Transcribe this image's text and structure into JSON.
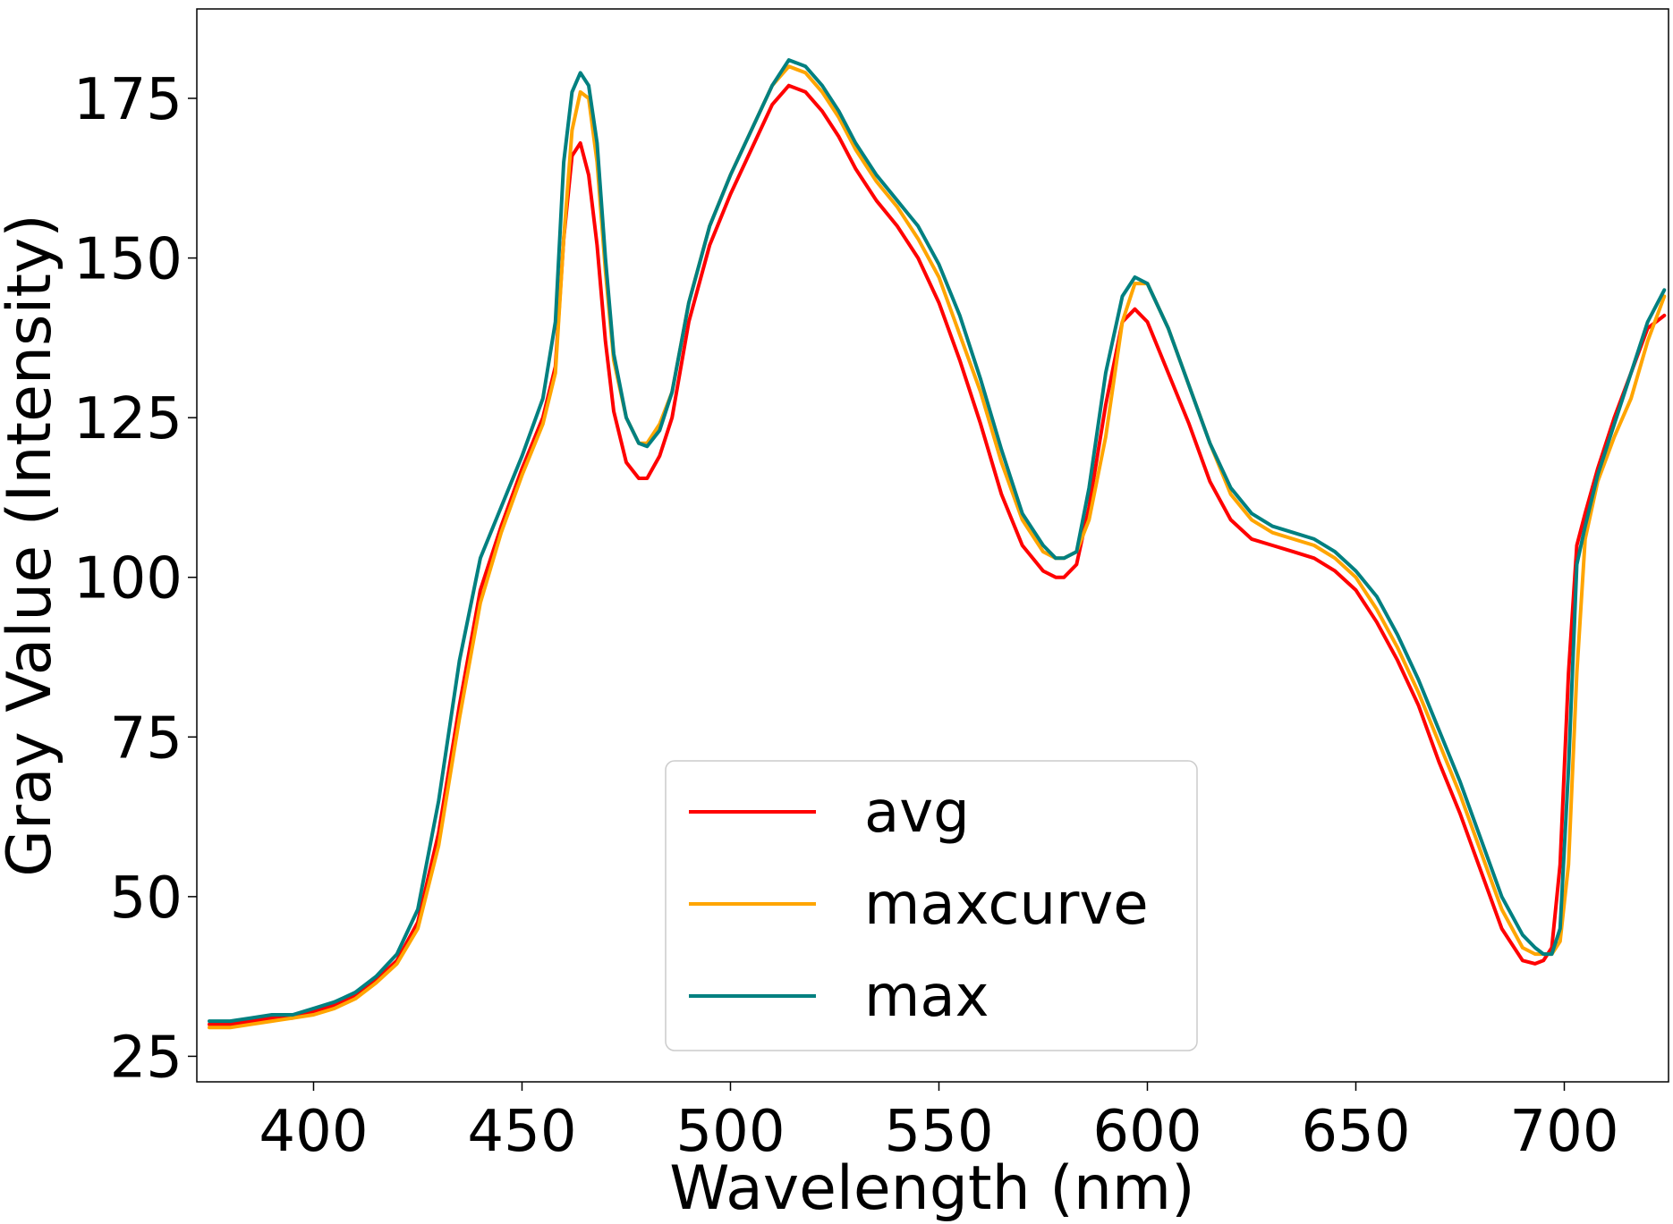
{
  "chart_data": {
    "type": "line",
    "title": "",
    "xlabel": "Wavelength (nm)",
    "ylabel": "Gray Value (Intensity)",
    "xlim": [
      372,
      725
    ],
    "ylim": [
      21,
      189
    ],
    "xticks": [
      400,
      450,
      500,
      550,
      600,
      650,
      700
    ],
    "yticks": [
      25,
      50,
      75,
      100,
      125,
      150,
      175
    ],
    "grid": false,
    "legend_position": "lower center",
    "series": [
      {
        "name": "avg",
        "color": "#ff0000",
        "x": [
          375,
          380,
          385,
          390,
          395,
          400,
          405,
          410,
          415,
          420,
          425,
          430,
          435,
          440,
          445,
          450,
          455,
          458,
          460,
          462,
          464,
          466,
          468,
          470,
          472,
          475,
          478,
          480,
          483,
          486,
          490,
          495,
          500,
          505,
          510,
          514,
          518,
          522,
          526,
          530,
          535,
          540,
          545,
          550,
          555,
          560,
          565,
          570,
          575,
          578,
          580,
          583,
          586,
          590,
          594,
          597,
          600,
          605,
          610,
          615,
          620,
          625,
          630,
          635,
          640,
          645,
          650,
          655,
          660,
          665,
          670,
          675,
          680,
          685,
          690,
          693,
          695,
          697,
          699,
          701,
          703,
          705,
          708,
          712,
          716,
          720,
          724
        ],
        "y": [
          30,
          30,
          30.5,
          31,
          31,
          32,
          33,
          34.5,
          37,
          40,
          46,
          60,
          80,
          98,
          108,
          117,
          125,
          133,
          153,
          166,
          168,
          163,
          152,
          137,
          126,
          118,
          115.5,
          115.5,
          119,
          125,
          140,
          152,
          160,
          167,
          174,
          177,
          176,
          173,
          169,
          164,
          159,
          155,
          150,
          143,
          134,
          124,
          113,
          105,
          101,
          100,
          100,
          102,
          111,
          127,
          140,
          142,
          140,
          132,
          124,
          115,
          109,
          106,
          105,
          104,
          103,
          101,
          98,
          93,
          87,
          80,
          71,
          63,
          54,
          45,
          40,
          39.5,
          40,
          42,
          55,
          85,
          105,
          110,
          117,
          125,
          132,
          139,
          141
        ]
      },
      {
        "name": "maxcurve",
        "color": "#ffa500",
        "x": [
          375,
          380,
          385,
          390,
          395,
          400,
          405,
          410,
          415,
          420,
          425,
          430,
          435,
          440,
          445,
          450,
          455,
          458,
          460,
          462,
          464,
          466,
          468,
          470,
          472,
          475,
          478,
          480,
          483,
          486,
          490,
          495,
          500,
          505,
          510,
          514,
          518,
          522,
          526,
          530,
          535,
          540,
          545,
          550,
          555,
          560,
          565,
          570,
          575,
          578,
          580,
          583,
          586,
          590,
          594,
          597,
          600,
          605,
          610,
          615,
          620,
          625,
          630,
          635,
          640,
          645,
          650,
          655,
          660,
          665,
          670,
          675,
          680,
          685,
          690,
          693,
          695,
          697,
          699,
          701,
          703,
          705,
          708,
          712,
          716,
          720,
          724
        ],
        "y": [
          29.5,
          29.5,
          30,
          30.5,
          31,
          31.5,
          32.5,
          34,
          36.5,
          39.5,
          45,
          58,
          78,
          96,
          107,
          116,
          124,
          132,
          153,
          170,
          176,
          175,
          165,
          148,
          134,
          125,
          121,
          121,
          124,
          129,
          143,
          155,
          163,
          170,
          177,
          180,
          179,
          176,
          172,
          167,
          162,
          158,
          153,
          147,
          138,
          129,
          118,
          109,
          104,
          103,
          103,
          104,
          109,
          122,
          140,
          146,
          146,
          139,
          130,
          121,
          113,
          109,
          107,
          106,
          105,
          103,
          100,
          95,
          89,
          82,
          74,
          66,
          57,
          48,
          42,
          41,
          41,
          41,
          43,
          55,
          85,
          106,
          115,
          122,
          128,
          137,
          144
        ]
      },
      {
        "name": "max",
        "color": "#008080",
        "x": [
          375,
          380,
          385,
          390,
          395,
          400,
          405,
          410,
          415,
          420,
          425,
          430,
          435,
          440,
          445,
          450,
          455,
          458,
          460,
          462,
          464,
          466,
          468,
          470,
          472,
          475,
          478,
          480,
          483,
          486,
          490,
          495,
          500,
          505,
          510,
          514,
          518,
          522,
          526,
          530,
          535,
          540,
          545,
          550,
          555,
          560,
          565,
          570,
          575,
          578,
          580,
          583,
          586,
          590,
          594,
          597,
          600,
          605,
          610,
          615,
          620,
          625,
          630,
          635,
          640,
          645,
          650,
          655,
          660,
          665,
          670,
          675,
          680,
          685,
          690,
          693,
          695,
          697,
          699,
          701,
          703,
          705,
          708,
          712,
          716,
          720,
          724
        ],
        "y": [
          30.5,
          30.5,
          31,
          31.5,
          31.5,
          32.5,
          33.5,
          35,
          37.5,
          41,
          48,
          65,
          87,
          103,
          111,
          119,
          128,
          140,
          165,
          176,
          179,
          177,
          168,
          150,
          135,
          125,
          121,
          120.5,
          123,
          129,
          143,
          155,
          163,
          170,
          177,
          181,
          180,
          177,
          173,
          168,
          163,
          159,
          155,
          149,
          141,
          131,
          120,
          110,
          105,
          103,
          103,
          104,
          114,
          132,
          144,
          147,
          146,
          139,
          130,
          121,
          114,
          110,
          108,
          107,
          106,
          104,
          101,
          97,
          91,
          84,
          76,
          68,
          59,
          50,
          44,
          42,
          41,
          41,
          45,
          70,
          102,
          108,
          116,
          124,
          132,
          140,
          145
        ]
      }
    ]
  }
}
